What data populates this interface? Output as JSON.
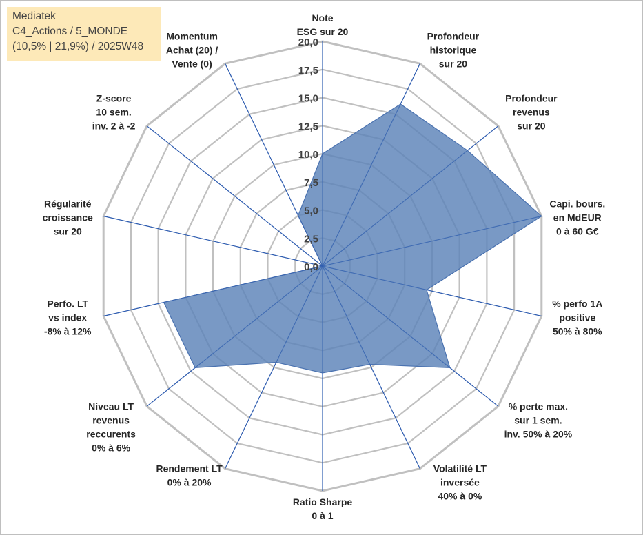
{
  "infobox": {
    "line1": "Mediatek",
    "line2": "C4_Actions / 5_MONDE",
    "line3": "(10,5% | 21,9%) / 2025W48"
  },
  "colors": {
    "fill": "#5b82b8",
    "stroke": "#4a72b0",
    "grid": "#c0c0c0",
    "spoke": "#2f5db0",
    "infobox_bg": "#fde9b8"
  },
  "chart_data": {
    "type": "radar",
    "rmax": 20,
    "ticks": [
      "0,0",
      "2,5",
      "5,0",
      "7,5",
      "10,0",
      "12,5",
      "15,0",
      "17,5",
      "20,0"
    ],
    "tick_values": [
      0,
      2.5,
      5,
      7.5,
      10,
      12.5,
      15,
      17.5,
      20
    ],
    "axes": [
      {
        "label": [
          "Note",
          "ESG sur 20"
        ],
        "value": 10
      },
      {
        "label": [
          "Profondeur",
          "historique",
          "sur 20"
        ],
        "value": 16
      },
      {
        "label": [
          "Profondeur",
          "revenus",
          "sur 20"
        ],
        "value": 16.5
      },
      {
        "label": [
          "Capi. bours.",
          "en MdEUR",
          "0 à 60 G€"
        ],
        "value": 20
      },
      {
        "label": [
          "% perfo 1A",
          "positive",
          "50% à 80%"
        ],
        "value": 9.5
      },
      {
        "label": [
          "% perte max.",
          "sur 1 sem.",
          "inv. 50% à 20%"
        ],
        "value": 14.5
      },
      {
        "label": [
          "Volatilité LT",
          "inversée",
          "40% à 0%"
        ],
        "value": 9.7
      },
      {
        "label": [
          "Ratio Sharpe",
          "0 à 1"
        ],
        "value": 9.5
      },
      {
        "label": [
          "Rendement LT",
          "0% à 20%"
        ],
        "value": 9.5
      },
      {
        "label": [
          "Niveau LT",
          "revenus",
          "reccurents",
          "0% à 6%"
        ],
        "value": 14.5
      },
      {
        "label": [
          "Perfo. LT",
          "vs index",
          "-8% à 12%"
        ],
        "value": 14.5
      },
      {
        "label": [
          "Régularité",
          "croissance",
          "sur 20"
        ],
        "value": 0
      },
      {
        "label": [
          "Z-score",
          "10 sem.",
          "inv. 2 à -2"
        ],
        "value": 0
      },
      {
        "label": [
          "Momentum",
          "Achat (20) /",
          "Vente (0)"
        ],
        "value": 5
      }
    ]
  }
}
